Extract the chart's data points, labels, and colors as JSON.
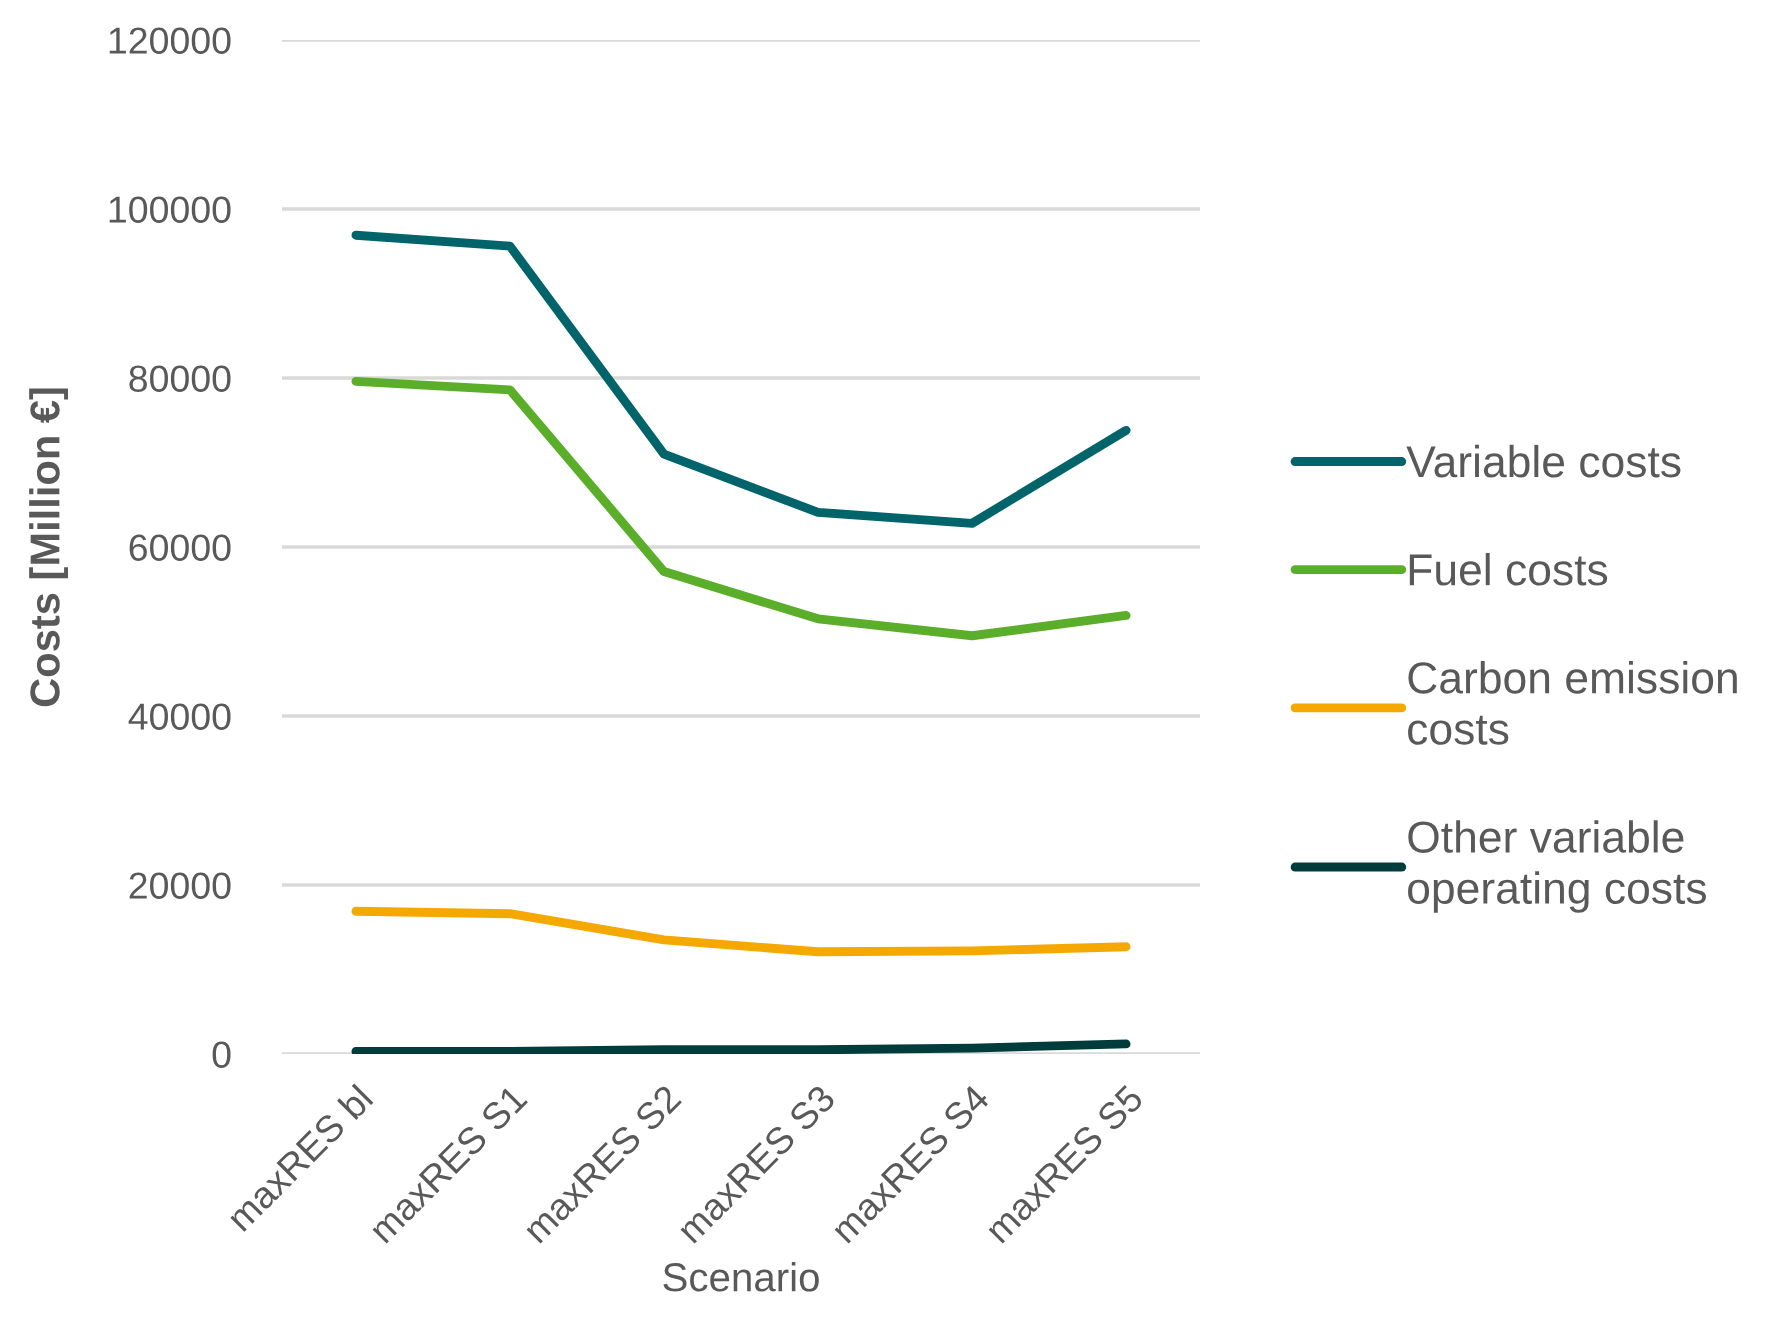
{
  "chart_data": {
    "type": "line",
    "xlabel": "Scenario",
    "ylabel": "Costs [Million €]",
    "categories": [
      "maxRES bl",
      "maxRES S1",
      "maxRES S2",
      "maxRES S3",
      "maxRES S4",
      "maxRES S5"
    ],
    "series": [
      {
        "name": "Variable costs",
        "color": "#00646a",
        "values": [
          96900,
          95600,
          71000,
          64100,
          62800,
          73800
        ]
      },
      {
        "name": "Fuel costs",
        "color": "#5aae2a",
        "values": [
          79600,
          78600,
          57100,
          51500,
          49500,
          51900
        ]
      },
      {
        "name": "Carbon emission\ncosts",
        "color": "#f5a800",
        "values": [
          16900,
          16600,
          13500,
          12100,
          12200,
          12700
        ]
      },
      {
        "name": "Other variable\noperating costs",
        "color": "#003c3c",
        "values": [
          300,
          300,
          500,
          500,
          700,
          1200
        ]
      }
    ],
    "ylim": [
      0,
      120000
    ],
    "yticks": [
      0,
      20000,
      40000,
      60000,
      80000,
      100000,
      120000
    ],
    "grid": "y",
    "legend": "right",
    "marker": "none",
    "line_style": "solid"
  }
}
